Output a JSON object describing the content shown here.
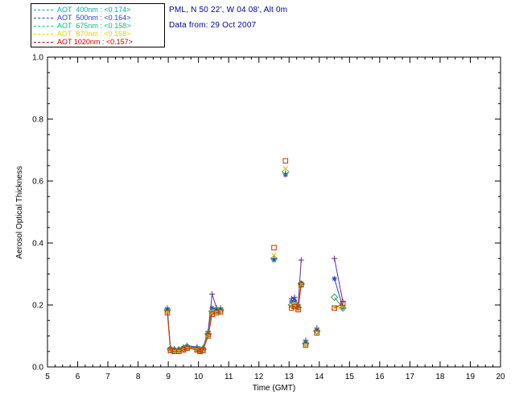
{
  "header": {
    "line1": "PML, N 50 22', W 04 08', Alt 0m",
    "line2": "Data from: 29 Oct 2007",
    "color": "#000099"
  },
  "chart_data": {
    "type": "scatter",
    "title": "",
    "xlabel": "Time (GMT)",
    "ylabel": "Aerosol Optical Thickness",
    "xlim": [
      5,
      20
    ],
    "ylim": [
      0.0,
      1.0
    ],
    "xticks": [
      5,
      6,
      7,
      8,
      9,
      10,
      11,
      12,
      13,
      14,
      15,
      16,
      17,
      18,
      19,
      20
    ],
    "yticks": [
      0.0,
      0.2,
      0.4,
      0.6,
      0.8,
      1.0
    ],
    "grid": false,
    "legend_position": "top-left",
    "series": [
      {
        "id": "400nm",
        "name": "AOT 400nm",
        "mean": 0.174,
        "legend_label": "AOT  400nm : <0.174>",
        "legend_color": "#00AFAF",
        "color": "#5E2D91",
        "symbol": "plus",
        "runs": [
          [
            [
              8.97,
              0.19
            ],
            [
              9.07,
              0.062
            ],
            [
              9.2,
              0.058
            ],
            [
              9.35,
              0.058
            ],
            [
              9.5,
              0.064
            ],
            [
              9.62,
              0.069
            ],
            [
              9.95,
              0.064
            ],
            [
              10.05,
              0.058
            ],
            [
              10.15,
              0.062
            ],
            [
              10.32,
              0.115
            ],
            [
              10.45,
              0.235
            ],
            [
              10.6,
              0.19
            ],
            [
              10.73,
              0.19
            ]
          ],
          [
            [
              12.5,
              0.35
            ]
          ],
          [
            [
              12.88,
              0.625
            ]
          ],
          [
            [
              13.08,
              0.22
            ],
            [
              13.18,
              0.225
            ],
            [
              13.3,
              0.2
            ],
            [
              13.4,
              0.345
            ]
          ],
          [
            [
              13.55,
              0.086
            ]
          ],
          [
            [
              13.92,
              0.125
            ]
          ],
          [
            [
              14.5,
              0.35
            ],
            [
              14.78,
              0.21
            ]
          ]
        ]
      },
      {
        "id": "500nm",
        "name": "AOT 500nm",
        "mean": 0.164,
        "legend_label": "AOT  500nm : <0.164>",
        "legend_color": "#2244CC",
        "color": "#2244CC",
        "symbol": "asterisk",
        "runs": [
          [
            [
              8.97,
              0.186
            ],
            [
              9.07,
              0.059
            ],
            [
              9.2,
              0.056
            ],
            [
              9.35,
              0.056
            ],
            [
              9.5,
              0.061
            ],
            [
              9.62,
              0.066
            ],
            [
              9.95,
              0.061
            ],
            [
              10.05,
              0.056
            ],
            [
              10.15,
              0.059
            ],
            [
              10.32,
              0.11
            ],
            [
              10.45,
              0.19
            ],
            [
              10.6,
              0.186
            ],
            [
              10.73,
              0.186
            ]
          ],
          [
            [
              12.5,
              0.345
            ]
          ],
          [
            [
              12.88,
              0.62
            ]
          ],
          [
            [
              13.08,
              0.21
            ],
            [
              13.18,
              0.215
            ],
            [
              13.3,
              0.196
            ],
            [
              13.4,
              0.27
            ]
          ],
          [
            [
              13.55,
              0.08
            ]
          ],
          [
            [
              13.92,
              0.12
            ]
          ],
          [
            [
              14.5,
              0.285
            ],
            [
              14.78,
              0.192
            ]
          ]
        ]
      },
      {
        "id": "675nm",
        "name": "AOT 675nm",
        "mean": 0.158,
        "legend_label": "AOT  675nm : <0.158>",
        "legend_color": "#00C878",
        "color": "#2FA05A",
        "symbol": "diamond",
        "runs": [
          [
            [
              8.97,
              0.183
            ],
            [
              9.07,
              0.057
            ],
            [
              9.2,
              0.054
            ],
            [
              9.35,
              0.054
            ],
            [
              9.5,
              0.059
            ],
            [
              9.62,
              0.064
            ],
            [
              9.95,
              0.059
            ],
            [
              10.05,
              0.054
            ],
            [
              10.15,
              0.057
            ],
            [
              10.32,
              0.106
            ],
            [
              10.45,
              0.18
            ],
            [
              10.6,
              0.182
            ],
            [
              10.73,
              0.183
            ]
          ],
          [
            [
              12.5,
              0.35
            ]
          ],
          [
            [
              12.88,
              0.63
            ]
          ],
          [
            [
              13.08,
              0.2
            ],
            [
              13.18,
              0.205
            ],
            [
              13.3,
              0.192
            ],
            [
              13.4,
              0.268
            ]
          ],
          [
            [
              13.55,
              0.076
            ]
          ],
          [
            [
              13.92,
              0.116
            ]
          ],
          [
            [
              14.5,
              0.225
            ],
            [
              14.78,
              0.19
            ]
          ]
        ]
      },
      {
        "id": "870nm",
        "name": "AOT 870nm",
        "mean": 0.158,
        "legend_label": "AOT  870nm : <0.158>",
        "legend_color": "#E0D000",
        "color": "#D8C400",
        "symbol": "x",
        "runs": [
          [
            [
              8.97,
              0.178
            ],
            [
              9.07,
              0.055
            ],
            [
              9.2,
              0.052
            ],
            [
              9.35,
              0.052
            ],
            [
              9.5,
              0.057
            ],
            [
              9.62,
              0.062
            ],
            [
              9.95,
              0.057
            ],
            [
              10.05,
              0.052
            ],
            [
              10.15,
              0.055
            ],
            [
              10.32,
              0.103
            ],
            [
              10.45,
              0.175
            ],
            [
              10.6,
              0.178
            ],
            [
              10.73,
              0.18
            ]
          ],
          [
            [
              12.5,
              0.36
            ]
          ],
          [
            [
              12.88,
              0.64
            ]
          ],
          [
            [
              13.08,
              0.195
            ],
            [
              13.18,
              0.2
            ],
            [
              13.3,
              0.188
            ],
            [
              13.4,
              0.267
            ]
          ],
          [
            [
              13.55,
              0.073
            ]
          ],
          [
            [
              13.92,
              0.113
            ]
          ],
          [
            [
              14.5,
              0.192
            ],
            [
              14.78,
              0.195
            ]
          ]
        ]
      },
      {
        "id": "1020nm",
        "name": "AOT 1020nm",
        "mean": 0.157,
        "legend_label": "AOT 1020nm : <0.157>",
        "legend_color": "#CC0000",
        "color": "#CC3300",
        "symbol": "square",
        "runs": [
          [
            [
              8.97,
              0.175
            ],
            [
              9.07,
              0.053
            ],
            [
              9.2,
              0.05
            ],
            [
              9.35,
              0.05
            ],
            [
              9.5,
              0.055
            ],
            [
              9.62,
              0.06
            ],
            [
              9.95,
              0.055
            ],
            [
              10.05,
              0.05
            ],
            [
              10.15,
              0.053
            ],
            [
              10.32,
              0.1
            ],
            [
              10.45,
              0.17
            ],
            [
              10.6,
              0.175
            ],
            [
              10.73,
              0.178
            ]
          ],
          [
            [
              12.5,
              0.385
            ]
          ],
          [
            [
              12.88,
              0.665
            ]
          ],
          [
            [
              13.08,
              0.19
            ],
            [
              13.18,
              0.195
            ],
            [
              13.3,
              0.185
            ],
            [
              13.4,
              0.265
            ]
          ],
          [
            [
              13.55,
              0.07
            ]
          ],
          [
            [
              13.92,
              0.11
            ]
          ],
          [
            [
              14.5,
              0.19
            ],
            [
              14.78,
              0.205
            ]
          ]
        ]
      }
    ]
  }
}
